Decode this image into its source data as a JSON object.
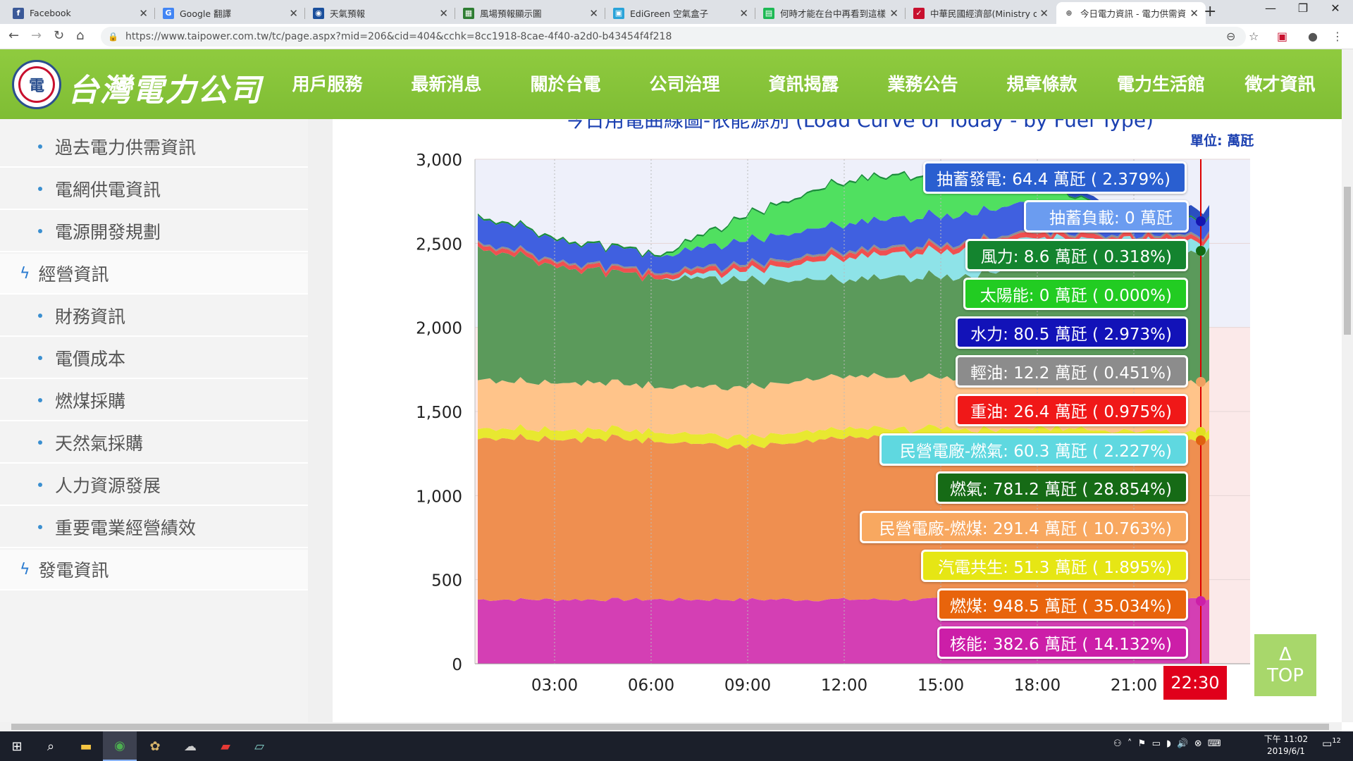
{
  "browser": {
    "tabs": [
      {
        "title": "Facebook",
        "icon": "facebook-icon",
        "color": "#3b5998",
        "glyph": "f"
      },
      {
        "title": "Google 翻譯",
        "icon": "google-translate-icon",
        "color": "#4285f4",
        "glyph": "G"
      },
      {
        "title": "天氣預報",
        "icon": "eye-icon",
        "color": "#1a4f9c",
        "glyph": "◉"
      },
      {
        "title": "風場預報顯示圖",
        "icon": "sheet-icon",
        "color": "#2e7d32",
        "glyph": "▦"
      },
      {
        "title": "EdiGreen 空氣盒子",
        "icon": "edigreen-icon",
        "color": "#29a3d9",
        "glyph": "▣"
      },
      {
        "title": "何時才能在台中再看到這樣",
        "icon": "doc-icon",
        "color": "#1db954",
        "glyph": "▤"
      },
      {
        "title": "中華民國經濟部(Ministry of",
        "icon": "moea-icon",
        "color": "#c8102e",
        "glyph": "✓"
      },
      {
        "title": "今日電力資訊 - 電力供需資",
        "icon": "taipower-icon",
        "color": "#ffffff",
        "glyph": "⊕"
      }
    ],
    "url": "https://www.taipower.com.tw/tc/page.aspx?mid=206&cid=404&cchk=8cc1918-8cae-4f40-a2d0-b43454f4f218"
  },
  "site": {
    "logo_text": "台灣電力公司",
    "nav": [
      "用戶服務",
      "最新消息",
      "關於台電",
      "公司治理",
      "資訊揭露",
      "業務公告",
      "規章條款",
      "電力生活館",
      "徵才資訊"
    ]
  },
  "sidebar": {
    "items": [
      {
        "label": "過去電力供需資訊",
        "type": "sub"
      },
      {
        "label": "電網供電資訊",
        "type": "sub"
      },
      {
        "label": "電源開發規劃",
        "type": "sub"
      },
      {
        "label": "經營資訊",
        "type": "cat"
      },
      {
        "label": "財務資訊",
        "type": "sub"
      },
      {
        "label": "電價成本",
        "type": "sub"
      },
      {
        "label": "燃煤採購",
        "type": "sub"
      },
      {
        "label": "天然氣採購",
        "type": "sub"
      },
      {
        "label": "人力資源發展",
        "type": "sub"
      },
      {
        "label": "重要電業經營績效",
        "type": "sub"
      },
      {
        "label": "發電資訊",
        "type": "cat"
      }
    ]
  },
  "chart": {
    "title": "今日用電曲線圖-依能源別 (Load Curve of Today - by Fuel Type)",
    "unit_label": "單位: 萬瓩",
    "y_ticks": [
      "3,000",
      "2,500",
      "2,000",
      "1,500",
      "1,000",
      "500",
      "0"
    ],
    "x_ticks": [
      "03:00",
      "06:00",
      "09:00",
      "12:00",
      "15:00",
      "18:00",
      "21:00"
    ],
    "current_time": "22:30"
  },
  "chart_data": {
    "type": "area",
    "title": "今日用電曲線圖-依能源別 (Load Curve of Today - by Fuel Type)",
    "ylabel": "單位: 萬瓩",
    "ylim": [
      0,
      3000
    ],
    "x": [
      "00:00",
      "03:00",
      "06:00",
      "09:00",
      "12:00",
      "15:00",
      "18:00",
      "21:00",
      "22:30"
    ],
    "series": [
      {
        "name": "核能",
        "color": "#d43fb4",
        "values": [
          382,
          382,
          382,
          382,
          382,
          382,
          382,
          382,
          382.6
        ]
      },
      {
        "name": "燃煤",
        "color": "#ef8f50",
        "values": [
          970,
          960,
          950,
          900,
          960,
          960,
          960,
          955,
          948.5
        ]
      },
      {
        "name": "汽電共生",
        "color": "#e8e830",
        "values": [
          60,
          55,
          55,
          60,
          55,
          55,
          60,
          55,
          51.3
        ]
      },
      {
        "name": "民營電廠-燃煤",
        "color": "#ffc48a",
        "values": [
          290,
          280,
          270,
          300,
          310,
          300,
          300,
          295,
          291.4
        ]
      },
      {
        "name": "燃氣",
        "color": "#5b9a5b",
        "values": [
          790,
          680,
          640,
          640,
          580,
          600,
          650,
          720,
          781.2
        ]
      },
      {
        "name": "民營電廠-燃氣",
        "color": "#8ee3e8",
        "values": [
          0,
          0,
          0,
          60,
          130,
          150,
          170,
          120,
          60.3
        ]
      },
      {
        "name": "重油",
        "color": "#f05050",
        "values": [
          25,
          25,
          25,
          30,
          30,
          30,
          30,
          28,
          26.4
        ]
      },
      {
        "name": "輕油",
        "color": "#909090",
        "values": [
          10,
          10,
          10,
          12,
          12,
          12,
          12,
          12,
          12.2
        ]
      },
      {
        "name": "水力",
        "color": "#4060e0",
        "values": [
          150,
          120,
          100,
          140,
          160,
          170,
          170,
          120,
          80.5
        ]
      },
      {
        "name": "太陽能",
        "color": "#50e060",
        "values": [
          0,
          0,
          0,
          150,
          250,
          250,
          150,
          0,
          0
        ]
      },
      {
        "name": "風力",
        "color": "#1a8f3a",
        "values": [
          10,
          10,
          10,
          10,
          10,
          10,
          10,
          10,
          8.6
        ]
      },
      {
        "name": "抽蓄負載",
        "color": "#7799ee",
        "values": [
          0,
          0,
          0,
          0,
          0,
          0,
          0,
          0,
          0
        ]
      },
      {
        "name": "抽蓄發電",
        "color": "#2a4fc0",
        "values": [
          0,
          0,
          0,
          0,
          0,
          0,
          0,
          40,
          64.4
        ]
      }
    ]
  },
  "tooltips": [
    {
      "text": "抽蓄發電: 64.4 萬瓩 ( 2.379%)",
      "bg": "#2a5fd0"
    },
    {
      "text": "抽蓄負載: 0 萬瓩",
      "bg": "#6b9cf0"
    },
    {
      "text": "風力: 8.6 萬瓩 ( 0.318%)",
      "bg": "#14842f"
    },
    {
      "text": "太陽能: 0 萬瓩 ( 0.000%)",
      "bg": "#22cc22"
    },
    {
      "text": "水力: 80.5 萬瓩 ( 2.973%)",
      "bg": "#1212b8"
    },
    {
      "text": "輕油: 12.2 萬瓩 ( 0.451%)",
      "bg": "#8c8c8c"
    },
    {
      "text": "重油: 26.4 萬瓩 ( 0.975%)",
      "bg": "#f01818"
    },
    {
      "text": "民營電廠-燃氣: 60.3 萬瓩 ( 2.227%)",
      "bg": "#5fd8e0"
    },
    {
      "text": "燃氣: 781.2 萬瓩 ( 28.854%)",
      "bg": "#166b16"
    },
    {
      "text": "民營電廠-燃煤: 291.4 萬瓩 ( 10.763%)",
      "bg": "#f8a860"
    },
    {
      "text": "汽電共生: 51.3 萬瓩 ( 1.895%)",
      "bg": "#e6e614"
    },
    {
      "text": "燃煤: 948.5 萬瓩 ( 35.034%)",
      "bg": "#e8640c"
    },
    {
      "text": "核能: 382.6 萬瓩 ( 14.132%)",
      "bg": "#cc1ea8"
    }
  ],
  "top_button": {
    "arrow": "Δ",
    "label": "TOP"
  },
  "taskbar": {
    "time": "下午 11:02",
    "date": "2019/6/1",
    "notifications": "12"
  }
}
